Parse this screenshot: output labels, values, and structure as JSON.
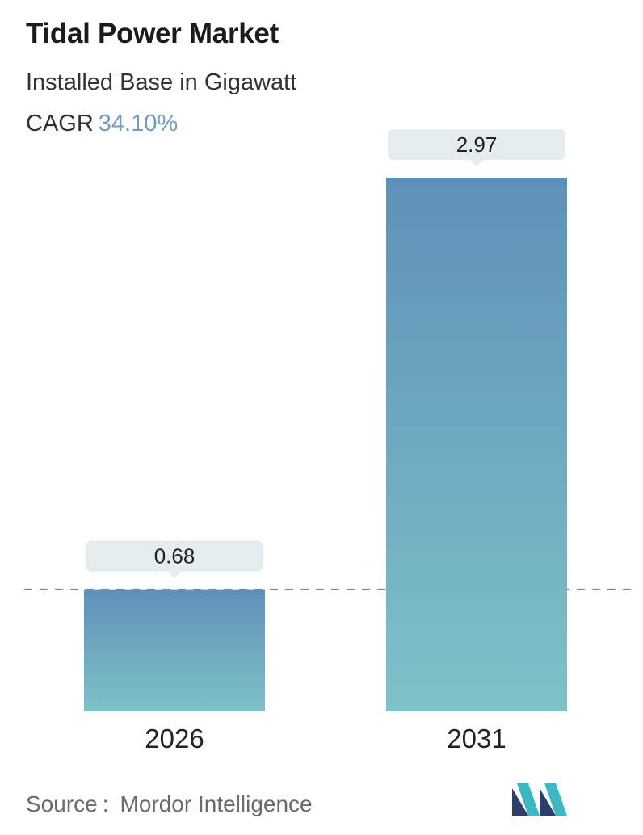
{
  "header": {
    "title": "Tidal Power Market",
    "subtitle": "Installed Base in Gigawatt",
    "cagr_label": "CAGR",
    "cagr_value": "34.10%"
  },
  "chart_data": {
    "type": "bar",
    "categories": [
      "2026",
      "2031"
    ],
    "values": [
      0.68,
      2.97
    ],
    "value_labels": [
      "0.68",
      "2.97"
    ],
    "title": "Tidal Power Market",
    "subtitle": "Installed Base in Gigawatt",
    "xlabel": "",
    "ylabel": "",
    "ylim": [
      0,
      2.97
    ],
    "grid": false,
    "reference_line": "dashed line at first bar value",
    "colors": {
      "bar_top": "#5f90b8",
      "bar_bottom": "#7ec2c8",
      "label_box": "#e4eced",
      "dashed_line": "#6b8ea8"
    }
  },
  "footer": {
    "source_label": "Source",
    "source_colon": ":",
    "source_name": "Mordor Intelligence",
    "logo_icon": "mordor-intelligence-logo-icon"
  }
}
